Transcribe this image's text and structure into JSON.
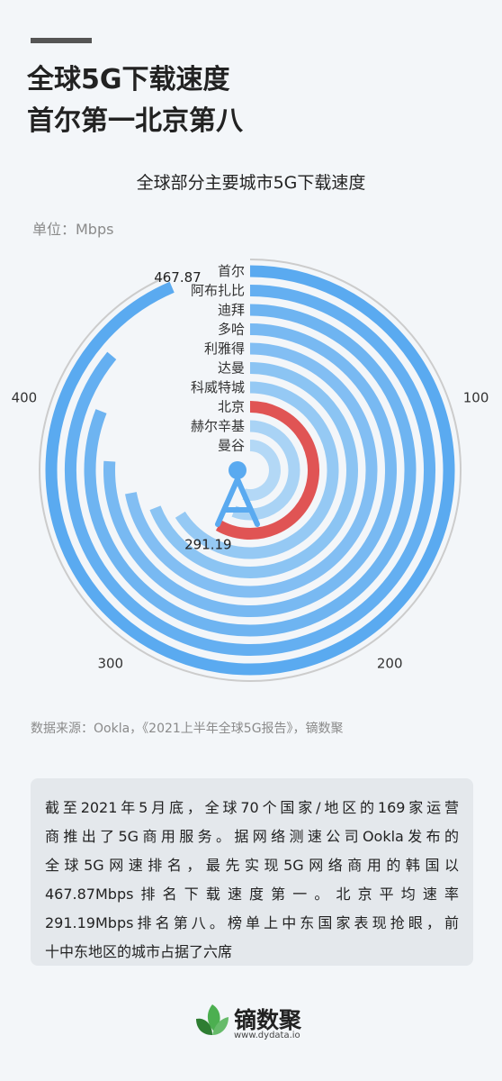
{
  "header": {
    "line1": "全球5G下载速度",
    "line2": "首尔第一北京第八"
  },
  "chart_data": {
    "type": "radial-bar",
    "title": "全球部分主要城市5G下载速度",
    "unit_label": "单位：Mbps",
    "full_circle_value": 500,
    "ticks": [
      {
        "value": 100,
        "label": "100"
      },
      {
        "value": 200,
        "label": "200"
      },
      {
        "value": 300,
        "label": "300"
      },
      {
        "value": 400,
        "label": "400"
      }
    ],
    "categories": [
      "首尔",
      "阿布扎比",
      "迪拜",
      "多哈",
      "利雅得",
      "达曼",
      "科威特城",
      "北京",
      "赫尔辛基",
      "曼谷"
    ],
    "values": [
      467.87,
      430,
      405,
      380,
      360,
      345,
      330,
      291.19,
      280,
      270
    ],
    "value_labels": {
      "首尔": "467.87",
      "北京": "291.19"
    },
    "colors": {
      "outer": "#5aaaf0",
      "inner": "#b3d8f6",
      "highlight": "#e05454",
      "highlight_category": "北京",
      "ring": "#cccccc"
    }
  },
  "source": "数据来源：Ookla，《2021上半年全球5G报告》，镝数聚",
  "description": {
    "lines": [
      "截至2021年5月底，全球70个国家/地区的169家运营",
      "商推出了5G商用服务。据网络测速公司Ookla发布的",
      "全球5G网速排名，最先实现5G网络商用的韩国以",
      "467.87Mbps排名下载速度第一。北京平均速率",
      "291.19Mbps排名第八。榜单上中东国家表现抢眼，前",
      "十中东地区的城市占据了六席"
    ]
  },
  "brand": {
    "name": "镝数聚",
    "url": "www.dydata.io"
  }
}
